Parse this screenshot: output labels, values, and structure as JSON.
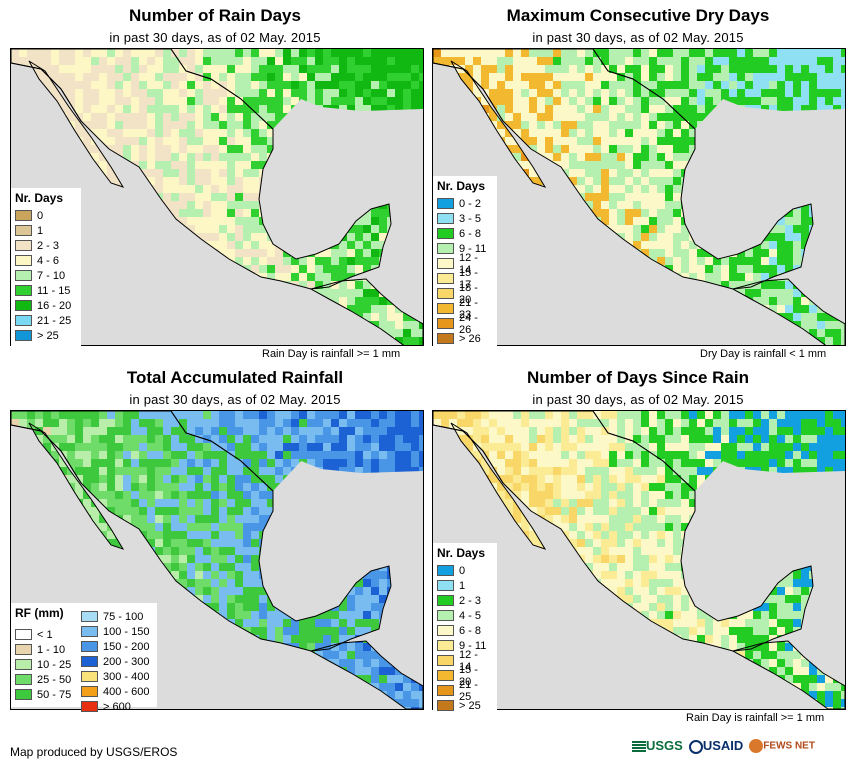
{
  "panels": [
    {
      "title": "Number of Rain Days",
      "subtitle": "in past 30 days, as of 02 May. 2015",
      "footnote": "Rain Day is rainfall >= 1 mm",
      "legend_title": "Nr. Days",
      "legend": [
        {
          "label": "0",
          "color": "#c9a45c"
        },
        {
          "label": "1",
          "color": "#dcc696"
        },
        {
          "label": "2 - 3",
          "color": "#f2e3c6"
        },
        {
          "label": "4 - 6",
          "color": "#fdf7c6"
        },
        {
          "label": "7 - 10",
          "color": "#b6f0b0"
        },
        {
          "label": "11 - 15",
          "color": "#30d030"
        },
        {
          "label": "16 - 20",
          "color": "#12b812"
        },
        {
          "label": "21 - 25",
          "color": "#79d8f2"
        },
        {
          "label": "> 25",
          "color": "#1296d8"
        }
      ]
    },
    {
      "title": "Maximum Consecutive Dry Days",
      "subtitle": "in past 30 days, as of 02 May. 2015",
      "footnote": "Dry Day is rainfall < 1 mm",
      "legend_title": "Nr. Days",
      "legend": [
        {
          "label": "0 - 2",
          "color": "#12a0e0"
        },
        {
          "label": "3 - 5",
          "color": "#8fe0f2"
        },
        {
          "label": "6 - 8",
          "color": "#22cc22"
        },
        {
          "label": "9 - 11",
          "color": "#b6f0b0"
        },
        {
          "label": "12 - 14",
          "color": "#fdf8c8"
        },
        {
          "label": "15 - 17",
          "color": "#fbeb95"
        },
        {
          "label": "18 - 20",
          "color": "#f8d668"
        },
        {
          "label": "21 - 23",
          "color": "#f2b830"
        },
        {
          "label": "24 - 26",
          "color": "#e6961a"
        },
        {
          "label": "> 26",
          "color": "#c47a1c"
        }
      ]
    },
    {
      "title": "Total Accumulated Rainfall",
      "subtitle": "in past 30 days, as of 02 May. 2015",
      "footnote": "",
      "legend_title": "RF (mm)",
      "legend": [
        {
          "label": "< 1",
          "color": "#ffffff"
        },
        {
          "label": "1 - 10",
          "color": "#e8d5ae"
        },
        {
          "label": "10 - 25",
          "color": "#b8eeaa"
        },
        {
          "label": "25 - 50",
          "color": "#6fdc6a"
        },
        {
          "label": "50 - 75",
          "color": "#3ec83e"
        },
        {
          "label": "75 - 100",
          "color": "#a8dcf5"
        },
        {
          "label": "100 - 150",
          "color": "#78bcf0"
        },
        {
          "label": "150 - 200",
          "color": "#4a96e6"
        },
        {
          "label": "200 - 300",
          "color": "#1c62d4"
        },
        {
          "label": "300 - 400",
          "color": "#f9e27a"
        },
        {
          "label": "400 - 600",
          "color": "#f2a01a"
        },
        {
          "label": "> 600",
          "color": "#e83010"
        }
      ]
    },
    {
      "title": "Number of Days Since Rain",
      "subtitle": "in past 30 days, as of 02 May. 2015",
      "footnote": "Rain Day is rainfall >= 1 mm",
      "legend_title": "Nr. Days",
      "legend": [
        {
          "label": "0",
          "color": "#12a0e0"
        },
        {
          "label": "1",
          "color": "#8fe0f2"
        },
        {
          "label": "2 - 3",
          "color": "#22cc22"
        },
        {
          "label": "4 - 5",
          "color": "#b6f0b0"
        },
        {
          "label": "6 - 8",
          "color": "#fdf8c8"
        },
        {
          "label": "9 - 11",
          "color": "#fbeb95"
        },
        {
          "label": "12 - 14",
          "color": "#f8d668"
        },
        {
          "label": "15 - 20",
          "color": "#f2b830"
        },
        {
          "label": "21 - 25",
          "color": "#e6961a"
        },
        {
          "label": "> 25",
          "color": "#c47a1c"
        }
      ]
    }
  ],
  "credit": "Map produced by USGS/EROS",
  "logos": {
    "usgs": "USGS",
    "usaid": "USAID",
    "fewsnet": "FEWS NET"
  },
  "colors": {
    "ocean": "#dcdcdc",
    "land_outside": "#ffffff",
    "border": "#000000"
  }
}
